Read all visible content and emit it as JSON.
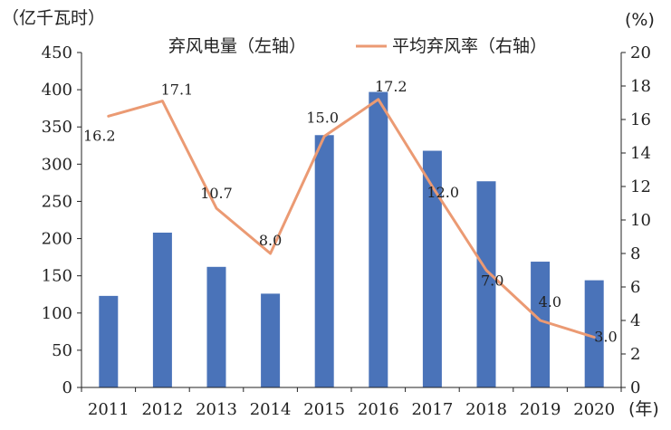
{
  "chart_data": {
    "type": "bar",
    "categories": [
      "2011",
      "2012",
      "2013",
      "2014",
      "2015",
      "2016",
      "2017",
      "2018",
      "2019",
      "2020"
    ],
    "series": [
      {
        "name": "弃风电量（左轴）",
        "type": "bar",
        "axis": "left",
        "values": [
          123,
          208,
          162,
          126,
          339,
          397,
          318,
          277,
          169,
          144
        ]
      },
      {
        "name": "平均弃风率（右轴）",
        "type": "line",
        "axis": "right",
        "values": [
          16.2,
          17.1,
          10.7,
          8.0,
          15.0,
          17.2,
          12.0,
          7.0,
          4.0,
          3.0
        ]
      }
    ],
    "data_labels": [
      "16.2",
      "17.1",
      "10.7",
      "8.0",
      "15.0",
      "17.2",
      "12.0",
      "7.0",
      "4.0",
      "3.0"
    ],
    "left_axis": {
      "unit": "（亿千瓦时）",
      "ylim": [
        0,
        450
      ],
      "ticks": [
        "0",
        "50",
        "100",
        "150",
        "200",
        "250",
        "300",
        "350",
        "400",
        "450"
      ]
    },
    "right_axis": {
      "unit": "(%)",
      "ylim": [
        0,
        20
      ],
      "ticks": [
        "0",
        "2",
        "4",
        "6",
        "8",
        "10",
        "12",
        "14",
        "16",
        "18",
        "20"
      ]
    },
    "x_unit": "(年)",
    "legend_placement": "top",
    "grid": false,
    "colors": {
      "bar": "#4a73b9",
      "line": "#eb9a73",
      "axis": "#222222"
    }
  }
}
